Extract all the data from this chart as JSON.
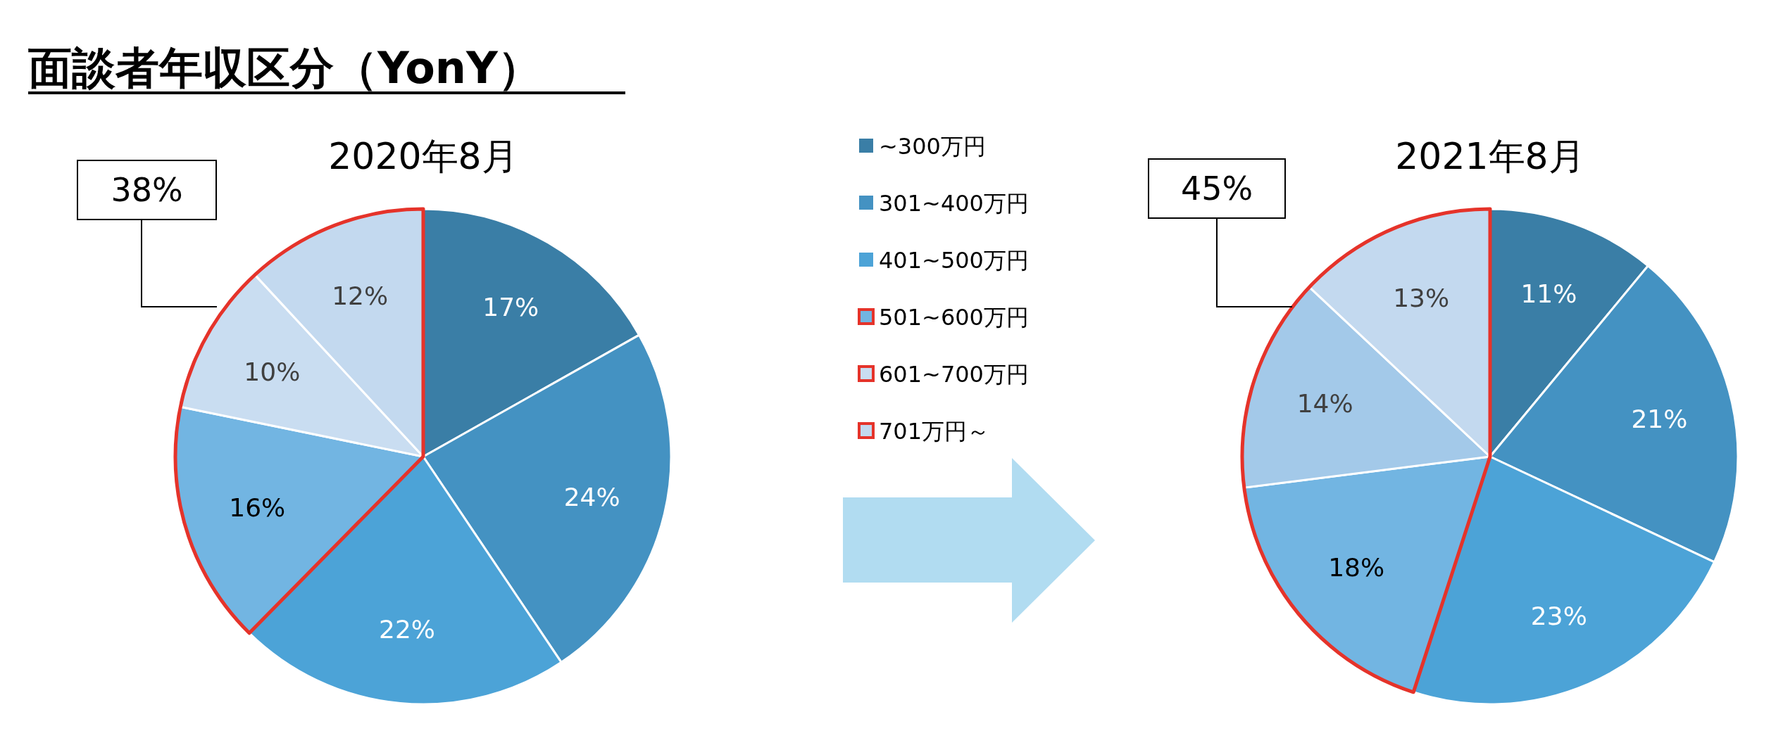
{
  "chart_data": [
    {
      "type": "pie",
      "title": "面談者年収区分（YonY）",
      "subtitle": "2020年8月",
      "categories": [
        "~300万円",
        "301~400万円",
        "401~500万円",
        "501~600万円",
        "601~700万円",
        "701万円～"
      ],
      "values": [
        17,
        24,
        22,
        16,
        10,
        12
      ],
      "colors": [
        "#3a7ea6",
        "#4492c2",
        "#4ca3d7",
        "#72b5e2",
        "#c9ddf1",
        "#c3d9ef"
      ],
      "value_labels": [
        "17%",
        "24%",
        "22%",
        "16%",
        "10%",
        "12%"
      ],
      "legend": "right",
      "annotations": [
        "38%"
      ]
    },
    {
      "type": "pie",
      "subtitle": "2021年8月",
      "values": [
        11,
        21,
        23,
        18,
        14,
        13
      ],
      "colors": [
        "#3a7ea6",
        "#4492c2",
        "#4ca3d7",
        "#72b5e2",
        "#a3c9e9",
        "#c3d9ef"
      ],
      "value_labels": [
        "11%",
        "21%",
        "23%",
        "18%",
        "14%",
        "13%"
      ],
      "annotations": [
        "45%"
      ]
    }
  ]
}
